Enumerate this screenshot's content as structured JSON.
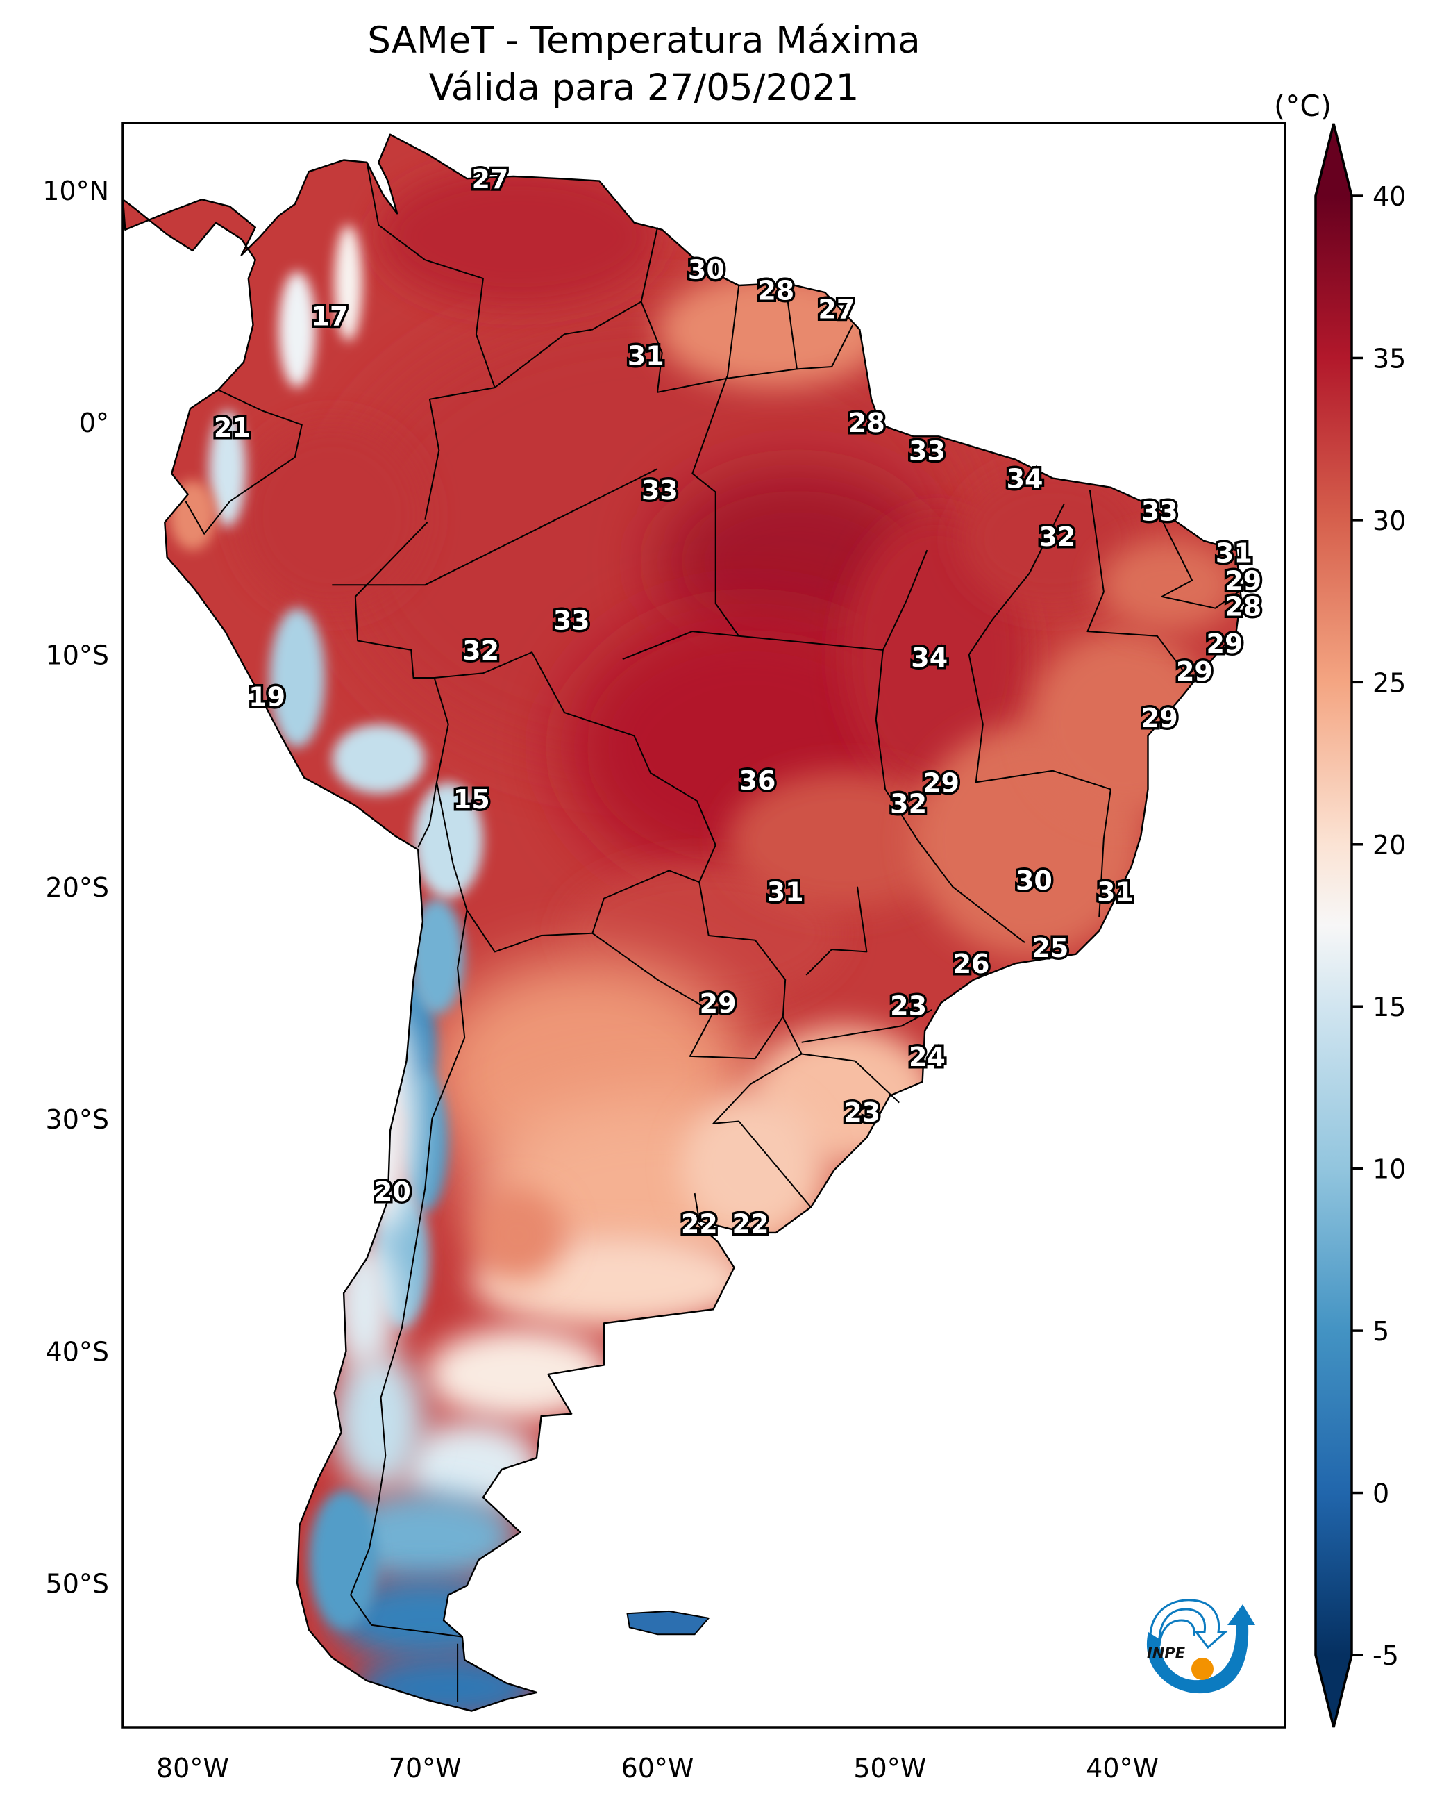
{
  "title": {
    "line1": "SAMeT - Temperatura Máxima",
    "line2": "Válida para 27/05/2021"
  },
  "chart_data": {
    "type": "heatmap",
    "title": "SAMeT - Temperatura Máxima Válida para 27/05/2021",
    "variable": "Maximum temperature",
    "units": "(°C)",
    "extent": {
      "lon": [
        -83,
        -33
      ],
      "lat": [
        -56.2,
        12.9
      ]
    },
    "x_ticks": [
      {
        "value": -80,
        "label": "80°W"
      },
      {
        "value": -70,
        "label": "70°W"
      },
      {
        "value": -60,
        "label": "60°W"
      },
      {
        "value": -50,
        "label": "50°W"
      },
      {
        "value": -40,
        "label": "40°W"
      }
    ],
    "y_ticks": [
      {
        "value": 10,
        "label": "10°N"
      },
      {
        "value": 0,
        "label": "0°"
      },
      {
        "value": -10,
        "label": "10°S"
      },
      {
        "value": -20,
        "label": "20°S"
      },
      {
        "value": -30,
        "label": "30°S"
      },
      {
        "value": -40,
        "label": "40°S"
      },
      {
        "value": -50,
        "label": "50°S"
      }
    ],
    "colorbar": {
      "label": "(°C)",
      "range": [
        -5,
        40
      ],
      "extend": "both",
      "colormap": "RdBu_r",
      "ticks": [
        {
          "value": 40,
          "label": "40"
        },
        {
          "value": 35,
          "label": "35"
        },
        {
          "value": 30,
          "label": "30"
        },
        {
          "value": 25,
          "label": "25"
        },
        {
          "value": 20,
          "label": "20"
        },
        {
          "value": 15,
          "label": "15"
        },
        {
          "value": 10,
          "label": "10"
        },
        {
          "value": 5,
          "label": "5"
        },
        {
          "value": 0,
          "label": "0"
        },
        {
          "value": -5,
          "label": "-5"
        }
      ],
      "stops": [
        {
          "value": -5,
          "color": "#053061"
        },
        {
          "value": 0,
          "color": "#2166ac"
        },
        {
          "value": 5,
          "color": "#4393c3"
        },
        {
          "value": 10,
          "color": "#92c5de"
        },
        {
          "value": 15,
          "color": "#d1e5f0"
        },
        {
          "value": 17.5,
          "color": "#f7f7f7"
        },
        {
          "value": 20,
          "color": "#fbe3d4"
        },
        {
          "value": 25,
          "color": "#f4a582"
        },
        {
          "value": 30,
          "color": "#d6604d"
        },
        {
          "value": 35,
          "color": "#b2182b"
        },
        {
          "value": 40,
          "color": "#67001f"
        }
      ]
    },
    "station_labels": [
      {
        "lon": -67.2,
        "lat": 10.5,
        "value": "27"
      },
      {
        "lon": -57.9,
        "lat": 6.6,
        "value": "30"
      },
      {
        "lon": -54.9,
        "lat": 5.7,
        "value": "28"
      },
      {
        "lon": -52.3,
        "lat": 4.9,
        "value": "27"
      },
      {
        "lon": -74.1,
        "lat": 4.6,
        "value": "17"
      },
      {
        "lon": -60.5,
        "lat": 2.9,
        "value": "31"
      },
      {
        "lon": -78.3,
        "lat": -0.2,
        "value": "21"
      },
      {
        "lon": -51.0,
        "lat": 0.0,
        "value": "28"
      },
      {
        "lon": -48.4,
        "lat": -1.2,
        "value": "33"
      },
      {
        "lon": -44.2,
        "lat": -2.4,
        "value": "34"
      },
      {
        "lon": -59.9,
        "lat": -2.9,
        "value": "33"
      },
      {
        "lon": -38.4,
        "lat": -3.8,
        "value": "33"
      },
      {
        "lon": -42.8,
        "lat": -4.9,
        "value": "32"
      },
      {
        "lon": -35.2,
        "lat": -5.6,
        "value": "31"
      },
      {
        "lon": -34.8,
        "lat": -6.8,
        "value": "29"
      },
      {
        "lon": -34.8,
        "lat": -7.9,
        "value": "28"
      },
      {
        "lon": -63.7,
        "lat": -8.5,
        "value": "33"
      },
      {
        "lon": -35.6,
        "lat": -9.5,
        "value": "29"
      },
      {
        "lon": -67.6,
        "lat": -9.8,
        "value": "32"
      },
      {
        "lon": -48.3,
        "lat": -10.1,
        "value": "34"
      },
      {
        "lon": -36.9,
        "lat": -10.7,
        "value": "29"
      },
      {
        "lon": -76.8,
        "lat": -11.8,
        "value": "19"
      },
      {
        "lon": -38.4,
        "lat": -12.7,
        "value": "29"
      },
      {
        "lon": -55.7,
        "lat": -15.4,
        "value": "36"
      },
      {
        "lon": -47.8,
        "lat": -15.5,
        "value": "29"
      },
      {
        "lon": -68.0,
        "lat": -16.2,
        "value": "15"
      },
      {
        "lon": -49.2,
        "lat": -16.4,
        "value": "32"
      },
      {
        "lon": -43.8,
        "lat": -19.7,
        "value": "30"
      },
      {
        "lon": -54.5,
        "lat": -20.2,
        "value": "31"
      },
      {
        "lon": -40.3,
        "lat": -20.2,
        "value": "31"
      },
      {
        "lon": -43.1,
        "lat": -22.6,
        "value": "25"
      },
      {
        "lon": -46.5,
        "lat": -23.3,
        "value": "26"
      },
      {
        "lon": -57.4,
        "lat": -25.0,
        "value": "29"
      },
      {
        "lon": -49.2,
        "lat": -25.1,
        "value": "23"
      },
      {
        "lon": -48.4,
        "lat": -27.3,
        "value": "24"
      },
      {
        "lon": -51.2,
        "lat": -29.7,
        "value": "23"
      },
      {
        "lon": -71.4,
        "lat": -33.1,
        "value": "20"
      },
      {
        "lon": -58.2,
        "lat": -34.5,
        "value": "22"
      },
      {
        "lon": -56.0,
        "lat": -34.5,
        "value": "22"
      }
    ]
  },
  "logo": {
    "text": "INPE",
    "arrow_color": "#0073b7",
    "dot_color": "#f39200"
  }
}
